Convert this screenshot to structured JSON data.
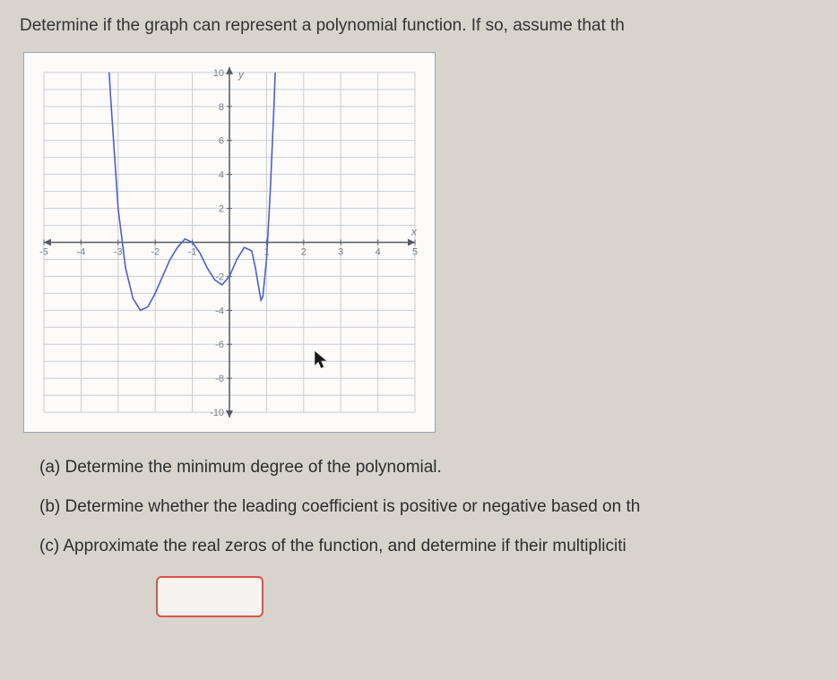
{
  "prompt": "Determine if the graph can represent a polynomial function. If so, assume that th",
  "graph": {
    "type": "line",
    "background_color": "#fcfbfa",
    "border_color": "#9ea3a8",
    "grid_color": "#c8cdd3",
    "axis_color": "#555a60",
    "curve_color": "#4a5fd0",
    "curve_width": 1.6,
    "label_color": "#7a7f85",
    "label_fontsize": 11,
    "arrow_color": "#555a60",
    "x_axis": {
      "min": -5,
      "max": 5,
      "tick_step": 1,
      "label": "x"
    },
    "y_axis": {
      "min": -10,
      "max": 10,
      "tick_step": 2,
      "label": "y"
    },
    "y_ticks_labeled": [
      10,
      8,
      6,
      4,
      2,
      -2,
      -4,
      -6,
      -8,
      -10
    ],
    "x_ticks_labeled": [
      -5,
      -4,
      -3,
      -2,
      -1,
      1,
      2,
      3,
      4,
      5
    ],
    "curve_points": [
      [
        -3.35,
        14
      ],
      [
        -3.2,
        8.5
      ],
      [
        -3.0,
        2.0
      ],
      [
        -2.8,
        -1.5
      ],
      [
        -2.6,
        -3.3
      ],
      [
        -2.4,
        -4.0
      ],
      [
        -2.2,
        -3.8
      ],
      [
        -2.0,
        -3.0
      ],
      [
        -1.8,
        -2.0
      ],
      [
        -1.6,
        -1.0
      ],
      [
        -1.4,
        -0.3
      ],
      [
        -1.2,
        0.2
      ],
      [
        -1.0,
        0.0
      ],
      [
        -0.8,
        -0.6
      ],
      [
        -0.6,
        -1.5
      ],
      [
        -0.4,
        -2.2
      ],
      [
        -0.2,
        -2.5
      ],
      [
        0.0,
        -2.0
      ],
      [
        0.2,
        -1.0
      ],
      [
        0.4,
        -0.3
      ],
      [
        0.6,
        -0.5
      ],
      [
        0.7,
        -1.5
      ],
      [
        0.8,
        -2.8
      ],
      [
        0.85,
        -3.4
      ],
      [
        0.9,
        -3.2
      ],
      [
        1.0,
        -1.0
      ],
      [
        1.1,
        3.0
      ],
      [
        1.2,
        8.0
      ],
      [
        1.3,
        14.0
      ]
    ]
  },
  "questions": {
    "a": "(a) Determine the minimum degree of the polynomial.",
    "b": "(b) Determine whether the leading coefficient is positive or negative based on th",
    "c": "(c) Approximate the real zeros of the function, and determine if their multipliciti"
  },
  "answer_box": {
    "border_color": "#d8544a",
    "background": "#f6f3f0"
  }
}
